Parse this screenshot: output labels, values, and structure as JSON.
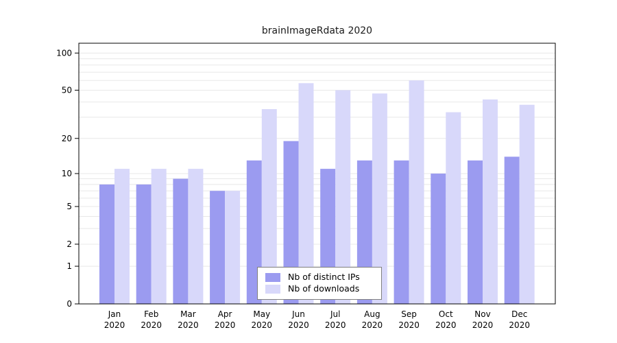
{
  "title": "brainImageRdata 2020",
  "colors": {
    "ips": "#9b9bf0",
    "downloads": "#d8d8fa",
    "grid": "#e8e8e8",
    "axis": "#000000",
    "title_text": "#1a1a1a",
    "legend_border": "#7f7f7f",
    "background": "#ffffff"
  },
  "chart_data": {
    "type": "bar",
    "scale": "log1p",
    "title": "brainImageRdata 2020",
    "xlabel": "",
    "ylabel": "",
    "categories": [
      "Jan 2020",
      "Feb 2020",
      "Mar 2020",
      "Apr 2020",
      "May 2020",
      "Jun 2020",
      "Jul 2020",
      "Aug 2020",
      "Sep 2020",
      "Oct 2020",
      "Nov 2020",
      "Dec 2020"
    ],
    "series": [
      {
        "name": "Nb of distinct IPs",
        "values": [
          8,
          8,
          9,
          7,
          13,
          19,
          11,
          13,
          13,
          10,
          13,
          14
        ]
      },
      {
        "name": "Nb of downloads",
        "values": [
          11,
          11,
          11,
          7,
          35,
          57,
          50,
          47,
          60,
          33,
          42,
          38
        ]
      }
    ],
    "yticks": [
      0,
      1,
      2,
      5,
      10,
      20,
      50,
      100
    ],
    "gridlines": [
      1,
      2,
      3,
      4,
      5,
      6,
      7,
      8,
      9,
      10,
      20,
      30,
      40,
      50,
      60,
      70,
      80,
      90,
      100
    ],
    "ylim": [
      0,
      120
    ],
    "legend_position": "bottom-center",
    "grid": "on"
  }
}
